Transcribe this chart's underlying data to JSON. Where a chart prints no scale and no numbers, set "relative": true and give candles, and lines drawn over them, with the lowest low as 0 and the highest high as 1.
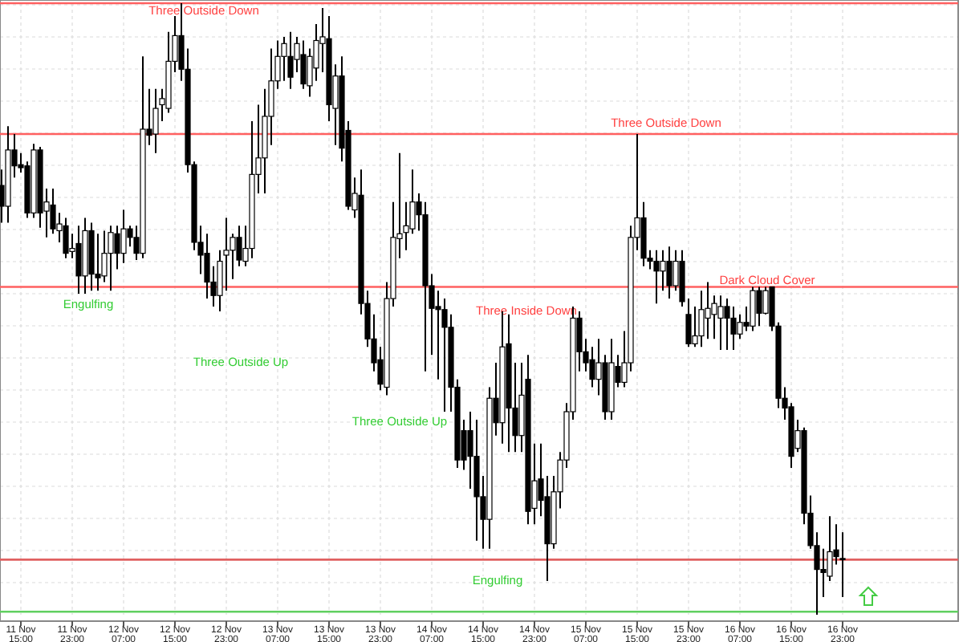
{
  "chart_data": {
    "type": "candlestick",
    "relative": true,
    "color": "#000000",
    "grid": true,
    "categories": [
      null,
      null,
      null,
      "11 Nov 15:00",
      null,
      null,
      null,
      null,
      null,
      null,
      null,
      "11 Nov 23:00",
      null,
      null,
      null,
      null,
      null,
      null,
      null,
      "12 Nov 07:00",
      null,
      null,
      null,
      null,
      null,
      null,
      null,
      "12 Nov 15:00",
      null,
      null,
      null,
      null,
      null,
      null,
      null,
      "12 Nov 23:00",
      null,
      null,
      null,
      null,
      null,
      null,
      null,
      "13 Nov 07:00",
      null,
      null,
      null,
      null,
      null,
      null,
      null,
      "13 Nov 15:00",
      null,
      null,
      null,
      null,
      null,
      null,
      null,
      "13 Nov 23:00",
      null,
      null,
      null,
      null,
      null,
      null,
      null,
      "14 Nov 07:00",
      null,
      null,
      null,
      null,
      null,
      null,
      null,
      "14 Nov 15:00",
      null,
      null,
      null,
      null,
      null,
      null,
      null,
      "14 Nov 23:00",
      null,
      null,
      null,
      null,
      null,
      null,
      null,
      "15 Nov 07:00",
      null,
      null,
      null,
      null,
      null,
      null,
      null,
      "15 Nov 15:00",
      null,
      null,
      null,
      null,
      null,
      null,
      null,
      "15 Nov 23:00",
      null,
      null,
      null,
      null,
      null,
      null,
      null,
      "16 Nov 07:00",
      null,
      null,
      null,
      null,
      null,
      null,
      null,
      "16 Nov 15:00",
      null,
      null,
      null,
      null,
      null,
      null,
      null,
      "16 Nov 23:00"
    ],
    "ohlc": [
      [
        0.702,
        0.728,
        0.641,
        0.668
      ],
      [
        0.668,
        0.799,
        0.641,
        0.76
      ],
      [
        0.76,
        0.786,
        0.715,
        0.734
      ],
      [
        0.736,
        0.755,
        0.723,
        0.731
      ],
      [
        0.734,
        0.741,
        0.649,
        0.657
      ],
      [
        0.657,
        0.77,
        0.649,
        0.76
      ],
      [
        0.76,
        0.765,
        0.633,
        0.657
      ],
      [
        0.66,
        0.697,
        0.617,
        0.675
      ],
      [
        0.67,
        0.697,
        0.623,
        0.631
      ],
      [
        0.628,
        0.657,
        0.609,
        0.639
      ],
      [
        0.636,
        0.649,
        0.583,
        0.591
      ],
      [
        0.594,
        0.623,
        0.583,
        0.599
      ],
      [
        0.607,
        0.636,
        0.525,
        0.554
      ],
      [
        0.554,
        0.649,
        0.525,
        0.628
      ],
      [
        0.628,
        0.641,
        0.53,
        0.557
      ],
      [
        0.557,
        0.623,
        0.53,
        0.551
      ],
      [
        0.554,
        0.628,
        0.544,
        0.591
      ],
      [
        0.591,
        0.636,
        0.53,
        0.625
      ],
      [
        0.623,
        0.636,
        0.565,
        0.591
      ],
      [
        0.591,
        0.662,
        0.575,
        0.631
      ],
      [
        0.631,
        0.636,
        0.602,
        0.617
      ],
      [
        0.617,
        0.636,
        0.58,
        0.591
      ],
      [
        0.591,
        0.913,
        0.583,
        0.794
      ],
      [
        0.794,
        0.86,
        0.768,
        0.784
      ],
      [
        0.786,
        0.86,
        0.755,
        0.828
      ],
      [
        0.834,
        0.86,
        0.807,
        0.844
      ],
      [
        0.828,
        0.953,
        0.821,
        0.905
      ],
      [
        0.905,
        0.979,
        0.887,
        0.947
      ],
      [
        0.947,
        1,
        0.873,
        0.892
      ],
      [
        0.892,
        0.926,
        0.723,
        0.736
      ],
      [
        0.736,
        0.741,
        0.596,
        0.609
      ],
      [
        0.609,
        0.636,
        0.557,
        0.588
      ],
      [
        0.591,
        0.623,
        0.517,
        0.544
      ],
      [
        0.544,
        0.57,
        0.504,
        0.522
      ],
      [
        0.522,
        0.596,
        0.496,
        0.578
      ],
      [
        0.588,
        0.649,
        0.53,
        0.596
      ],
      [
        0.596,
        0.623,
        0.549,
        0.617
      ],
      [
        0.617,
        0.636,
        0.57,
        0.58
      ],
      [
        0.578,
        0.636,
        0.57,
        0.599
      ],
      [
        0.599,
        0.807,
        0.583,
        0.72
      ],
      [
        0.72,
        0.834,
        0.689,
        0.747
      ],
      [
        0.747,
        0.86,
        0.689,
        0.815
      ],
      [
        0.815,
        0.926,
        0.768,
        0.873
      ],
      [
        0.873,
        0.939,
        0.86,
        0.913
      ],
      [
        0.913,
        0.945,
        0.873,
        0.934
      ],
      [
        0.913,
        0.953,
        0.86,
        0.879
      ],
      [
        0.908,
        0.945,
        0.887,
        0.934
      ],
      [
        0.916,
        0.939,
        0.86,
        0.868
      ],
      [
        0.865,
        0.926,
        0.847,
        0.913
      ],
      [
        0.894,
        0.966,
        0.873,
        0.939
      ],
      [
        0.934,
        0.992,
        0.887,
        0.945
      ],
      [
        0.942,
        0.979,
        0.807,
        0.834
      ],
      [
        0.828,
        0.9,
        0.768,
        0.881
      ],
      [
        0.881,
        0.913,
        0.741,
        0.763
      ],
      [
        0.792,
        0.807,
        0.662,
        0.668
      ],
      [
        0.662,
        0.715,
        0.649,
        0.689
      ],
      [
        0.686,
        0.728,
        0.491,
        0.509
      ],
      [
        0.509,
        0.53,
        0.438,
        0.451
      ],
      [
        0.451,
        0.491,
        0.398,
        0.412
      ],
      [
        0.417,
        0.438,
        0.367,
        0.377
      ],
      [
        0.372,
        0.544,
        0.359,
        0.517
      ],
      [
        0.517,
        0.675,
        0.504,
        0.617
      ],
      [
        0.615,
        0.755,
        0.583,
        0.623
      ],
      [
        0.625,
        0.675,
        0.596,
        0.636
      ],
      [
        0.631,
        0.728,
        0.623,
        0.675
      ],
      [
        0.675,
        0.689,
        0.628,
        0.654
      ],
      [
        0.654,
        0.675,
        0.398,
        0.538
      ],
      [
        0.538,
        0.557,
        0.425,
        0.501
      ],
      [
        0.504,
        0.53,
        0.385,
        0.499
      ],
      [
        0.499,
        0.517,
        0.332,
        0.47
      ],
      [
        0.47,
        0.491,
        0.332,
        0.372
      ],
      [
        0.372,
        0.385,
        0.24,
        0.253
      ],
      [
        0.301,
        0.319,
        0.237,
        0.253
      ],
      [
        0.301,
        0.332,
        0.206,
        0.259
      ],
      [
        0.259,
        0.319,
        0.121,
        0.193
      ],
      [
        0.193,
        0.227,
        0.108,
        0.156
      ],
      [
        0.156,
        0.372,
        0.108,
        0.354
      ],
      [
        0.354,
        0.412,
        0.293,
        0.314
      ],
      [
        0.314,
        0.496,
        0.28,
        0.438
      ],
      [
        0.443,
        0.491,
        0.266,
        0.338
      ],
      [
        0.338,
        0.412,
        0.266,
        0.293
      ],
      [
        0.293,
        0.412,
        0.266,
        0.359
      ],
      [
        0.385,
        0.425,
        0.148,
        0.169
      ],
      [
        0.174,
        0.28,
        0.148,
        0.219
      ],
      [
        0.222,
        0.28,
        0.161,
        0.187
      ],
      [
        0.193,
        0.227,
        0.055,
        0.116
      ],
      [
        0.116,
        0.227,
        0.108,
        0.201
      ],
      [
        0.201,
        0.266,
        0.174,
        0.253
      ],
      [
        0.253,
        0.346,
        0.24,
        0.332
      ],
      [
        0.332,
        0.504,
        0.319,
        0.485
      ],
      [
        0.485,
        0.496,
        0.398,
        0.43
      ],
      [
        0.43,
        0.451,
        0.398,
        0.412
      ],
      [
        0.417,
        0.438,
        0.372,
        0.385
      ],
      [
        0.385,
        0.451,
        0.359,
        0.412
      ],
      [
        0.412,
        0.425,
        0.319,
        0.332
      ],
      [
        0.332,
        0.451,
        0.319,
        0.412
      ],
      [
        0.406,
        0.425,
        0.372,
        0.38
      ],
      [
        0.38,
        0.464,
        0.372,
        0.412
      ],
      [
        0.412,
        0.636,
        0.398,
        0.617
      ],
      [
        0.617,
        0.786,
        0.596,
        0.649
      ],
      [
        0.649,
        0.675,
        0.57,
        0.583
      ],
      [
        0.583,
        0.596,
        0.565,
        0.578
      ],
      [
        0.578,
        0.596,
        0.509,
        0.562
      ],
      [
        0.562,
        0.596,
        0.53,
        0.578
      ],
      [
        0.578,
        0.602,
        0.517,
        0.538
      ],
      [
        0.538,
        0.596,
        0.53,
        0.578
      ],
      [
        0.578,
        0.596,
        0.504,
        0.512
      ],
      [
        0.491,
        0.517,
        0.438,
        0.443
      ],
      [
        0.443,
        0.504,
        0.438,
        0.456
      ],
      [
        0.456,
        0.53,
        0.438,
        0.499
      ],
      [
        0.485,
        0.544,
        0.451,
        0.501
      ],
      [
        0.491,
        0.522,
        0.451,
        0.509
      ],
      [
        0.485,
        0.522,
        0.433,
        0.504
      ],
      [
        0.504,
        0.517,
        0.433,
        0.485
      ],
      [
        0.485,
        0.504,
        0.433,
        0.459
      ],
      [
        0.459,
        0.491,
        0.451,
        0.478
      ],
      [
        0.478,
        0.504,
        0.464,
        0.472
      ],
      [
        0.472,
        0.536,
        0.464,
        0.53
      ],
      [
        0.53,
        0.536,
        0.472,
        0.493
      ],
      [
        0.493,
        0.536,
        0.491,
        0.53
      ],
      [
        0.536,
        0.536,
        0.464,
        0.472
      ],
      [
        0.472,
        0.478,
        0.338,
        0.354
      ],
      [
        0.354,
        0.372,
        0.319,
        0.338
      ],
      [
        0.34,
        0.346,
        0.24,
        0.259
      ],
      [
        0.272,
        0.319,
        0.266,
        0.301
      ],
      [
        0.301,
        0.306,
        0.148,
        0.166
      ],
      [
        0.166,
        0.195,
        0.108,
        0.113
      ],
      [
        0.113,
        0.135,
        0,
        0.074
      ],
      [
        0.074,
        0.108,
        0.029,
        0.069
      ],
      [
        0.063,
        0.161,
        0.055,
        0.103
      ],
      [
        0.106,
        0.148,
        0.082,
        0.095
      ],
      [
        0.092,
        0.135,
        0.029,
        0.09
      ]
    ],
    "ref_lines": [
      {
        "axis": "y",
        "value": 1,
        "color": "#ff6060"
      },
      {
        "axis": "y",
        "value": 0.786,
        "color": "#ff6060"
      },
      {
        "axis": "y",
        "value": 0.536,
        "color": "#ff6060"
      },
      {
        "axis": "y",
        "value": 0.09,
        "color": "#e06060"
      },
      {
        "axis": "y",
        "value": 0.005,
        "color": "#60d060"
      }
    ],
    "annotations": [
      "Three Outside Down",
      "Engulfing",
      "Three Outside Up",
      "Three Outside Up",
      "Three Inside Down",
      "Engulfing",
      "Three Outside Down",
      "Dark Cloud Cover"
    ]
  }
}
